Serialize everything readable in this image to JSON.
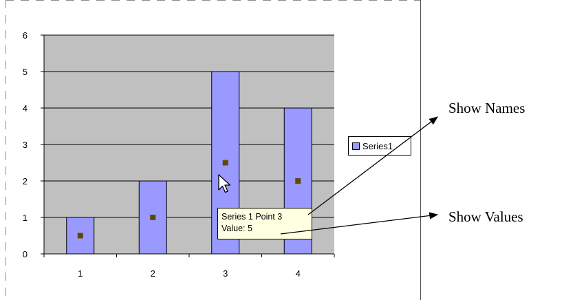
{
  "chart_data": {
    "type": "bar",
    "categories": [
      "1",
      "2",
      "3",
      "4"
    ],
    "series": [
      {
        "name": "Series1",
        "values": [
          1,
          2,
          5,
          4
        ],
        "color": "#9999ff"
      }
    ],
    "markers": {
      "values": [
        0.5,
        1,
        2.5,
        2
      ],
      "color": "#5c4a00"
    },
    "ylim": [
      0,
      6
    ],
    "yticks": [
      0,
      1,
      2,
      3,
      4,
      5,
      6
    ],
    "grid": true,
    "plot_background": "#c0c0c0",
    "legend_position": "right",
    "title": "",
    "xlabel": "",
    "ylabel": ""
  },
  "legend": {
    "label": "Series1",
    "swatch_color": "#9999ff"
  },
  "tooltip": {
    "line1": "Series 1 Point 3",
    "line2": "Value: 5"
  },
  "callouts": {
    "names": "Show Names",
    "values": "Show Values"
  }
}
